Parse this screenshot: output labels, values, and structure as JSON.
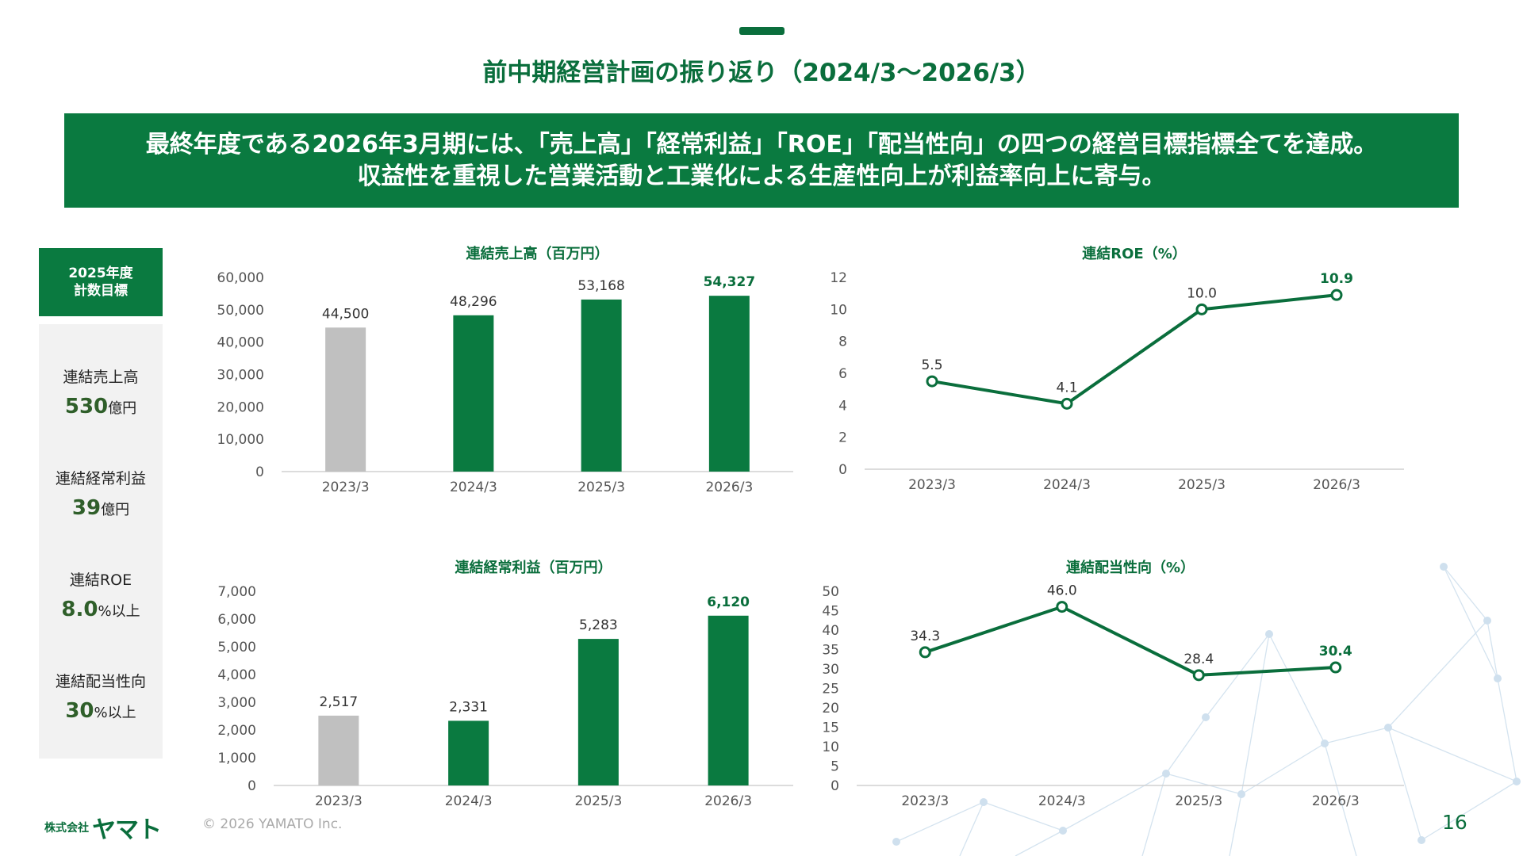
{
  "title": "前中期経営計画の振り返り（2024/3～2026/3）",
  "banner": {
    "line1": "最終年度である2026年3月期には、「売上高」「経常利益」「ROE」「配当性向」の四つの経営目標指標全てを達成。",
    "line2": "収益性を重視した営業活動と工業化による生産性向上が利益率向上に寄与。"
  },
  "targets": {
    "heading_line1": "2025年度",
    "heading_line2": "計数目標",
    "items": [
      {
        "label": "連結売上高",
        "value": "530",
        "unit": "億円"
      },
      {
        "label": "連結経常利益",
        "value": "39",
        "unit": "億円"
      },
      {
        "label": "連結ROE",
        "value": "8.0",
        "unit": "%以上"
      },
      {
        "label": "連結配当性向",
        "value": "30",
        "unit": "%以上"
      }
    ]
  },
  "colors": {
    "brand": "#0a7a40",
    "prior": "#c0c0c0",
    "highlight": "#0a6e3c"
  },
  "chart_data": [
    {
      "type": "bar",
      "title": "連結売上高（百万円）",
      "categories": [
        "2023/3",
        "2024/3",
        "2025/3",
        "2026/3"
      ],
      "values": [
        44500,
        48296,
        53168,
        54327
      ],
      "value_labels": [
        "44,500",
        "48,296",
        "53,168",
        "54,327"
      ],
      "yticks": [
        "0",
        "10,000",
        "20,000",
        "30,000",
        "40,000",
        "50,000",
        "60,000"
      ],
      "ylim": [
        0,
        60000
      ],
      "grid": false
    },
    {
      "type": "line",
      "title": "連結ROE（%）",
      "categories": [
        "2023/3",
        "2024/3",
        "2025/3",
        "2026/3"
      ],
      "values": [
        5.5,
        4.1,
        10.0,
        10.9
      ],
      "value_labels": [
        "5.5",
        "4.1",
        "10.0",
        "10.9"
      ],
      "yticks": [
        "0",
        "2",
        "4",
        "6",
        "8",
        "10",
        "12"
      ],
      "ylim": [
        0,
        12
      ],
      "grid": false
    },
    {
      "type": "bar",
      "title": "連結経常利益（百万円）",
      "categories": [
        "2023/3",
        "2024/3",
        "2025/3",
        "2026/3"
      ],
      "values": [
        2517,
        2331,
        5283,
        6120
      ],
      "value_labels": [
        "2,517",
        "2,331",
        "5,283",
        "6,120"
      ],
      "yticks": [
        "0",
        "1,000",
        "2,000",
        "3,000",
        "4,000",
        "5,000",
        "6,000",
        "7,000"
      ],
      "ylim": [
        0,
        7000
      ],
      "grid": false
    },
    {
      "type": "line",
      "title": "連結配当性向（%）",
      "categories": [
        "2023/3",
        "2024/3",
        "2025/3",
        "2026/3"
      ],
      "values": [
        34.3,
        46.0,
        28.4,
        30.4
      ],
      "value_labels": [
        "34.3",
        "46.0",
        "28.4",
        "30.4"
      ],
      "yticks": [
        "0",
        "5",
        "10",
        "15",
        "20",
        "25",
        "30",
        "35",
        "40",
        "45",
        "50"
      ],
      "ylim": [
        0,
        50
      ],
      "grid": false
    }
  ],
  "footer": {
    "logo_small": "株式会社",
    "logo_big": "ヤマト",
    "copyright": "© 2026 YAMATO Inc.",
    "page_number": "16"
  }
}
